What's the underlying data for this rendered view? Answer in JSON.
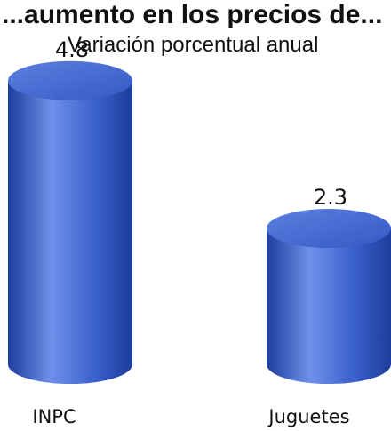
{
  "chart_data": {
    "type": "bar",
    "title": "...aumento en los precios de...",
    "subtitle": "Variación porcentual anual",
    "categories": [
      "INPC",
      "Juguetes"
    ],
    "values": [
      4.8,
      2.3
    ],
    "data_labels": [
      "4.8",
      "2.3"
    ],
    "ylim": [
      0,
      5
    ],
    "bar_style": "cylinder",
    "grid": false,
    "legend": "none",
    "colors": {
      "bar_light": "#6f90ea",
      "bar_mid": "#3a60cc",
      "bar_dark": "#1e3d9c",
      "bar_top": "#4a70d8"
    }
  }
}
